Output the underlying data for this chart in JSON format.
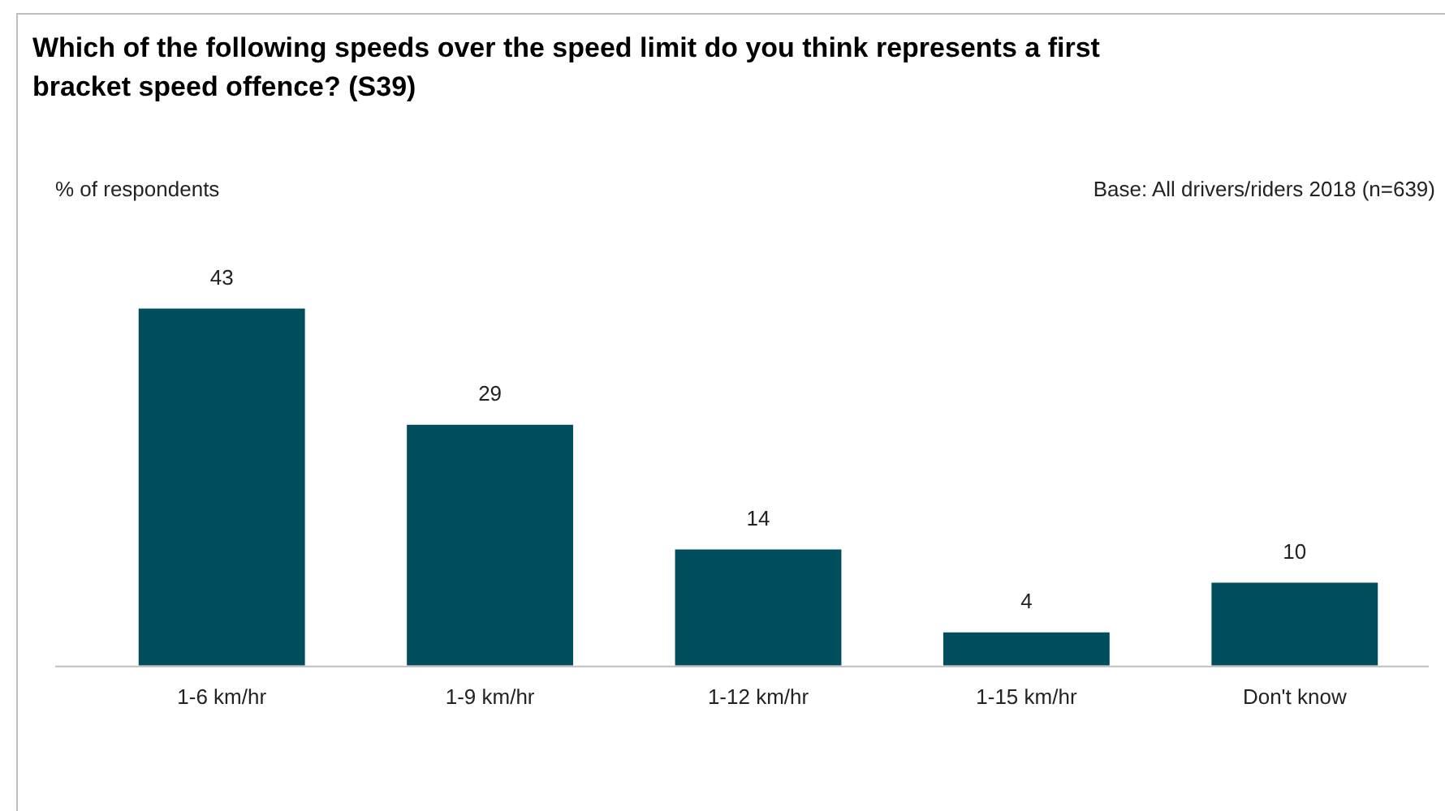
{
  "chart_data": {
    "type": "bar",
    "title": "Which of the following speeds over the speed limit do you think represents a first bracket speed offence? (S39)",
    "annotations": [
      "% of respondents",
      "Base: All drivers/riders 2018 (n=639)"
    ],
    "categories": [
      "1-6 km/hr",
      "1-9 km/hr",
      "1-12 km/hr",
      "1-15 km/hr",
      "Don't know"
    ],
    "values": [
      43,
      29,
      14,
      4,
      10
    ],
    "color": "#004d5e",
    "data_labels": true,
    "grid": false,
    "legend": false
  }
}
